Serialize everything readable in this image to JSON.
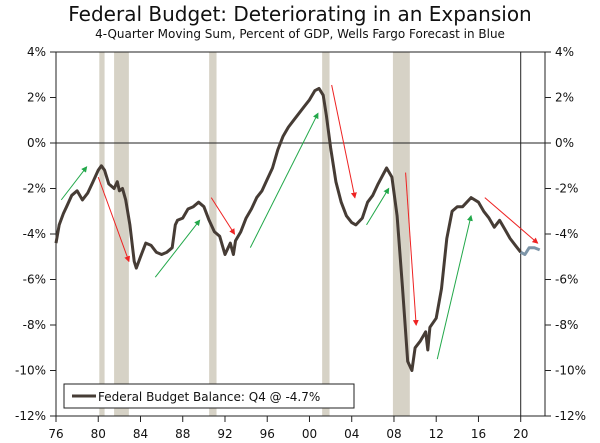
{
  "chart_data": {
    "type": "line",
    "title": "Federal Budget: Deteriorating in an Expansion",
    "subtitle": "4-Quarter Moving Sum, Percent of GDP, Wells Fargo Forecast in Blue",
    "xlabel": "",
    "ylabel": "",
    "xlim": [
      1976,
      2022.3
    ],
    "ylim": [
      -12,
      4
    ],
    "x_ticks": [
      1976,
      1980,
      1984,
      1988,
      1992,
      1996,
      2000,
      2004,
      2008,
      2012,
      2016,
      2020
    ],
    "x_tick_labels": [
      "76",
      "80",
      "84",
      "88",
      "92",
      "96",
      "00",
      "04",
      "08",
      "12",
      "16",
      "20"
    ],
    "y_ticks": [
      4,
      2,
      0,
      -2,
      -4,
      -6,
      -8,
      -10,
      -12
    ],
    "y_tick_labels": [
      "4%",
      "2%",
      "0%",
      "-2%",
      "-4%",
      "-6%",
      "-8%",
      "-10%",
      "-12%"
    ],
    "legend": {
      "label": "Federal Budget Balance: Q4 @ -4.7%",
      "placement": "bottom-left"
    },
    "forecast_start": 2020,
    "colors": {
      "actual": "#463c35",
      "forecast": "#7d95a8",
      "recession": "#d6d2c6",
      "up_arrow": "#22a84a",
      "down_arrow": "#ee2222"
    },
    "recessions": [
      [
        1980.1,
        1980.6
      ],
      [
        1981.5,
        1982.9
      ],
      [
        1990.5,
        1991.2
      ],
      [
        2001.2,
        2001.9
      ],
      [
        2007.9,
        2009.5
      ]
    ],
    "series": [
      {
        "name": "Federal Budget Balance",
        "x": [
          1976,
          1976.3,
          1976.7,
          1977,
          1977.5,
          1978,
          1978.5,
          1979,
          1979.5,
          1980,
          1980.3,
          1980.6,
          1981,
          1981.5,
          1981.8,
          1982,
          1982.3,
          1982.6,
          1983,
          1983.4,
          1983.6,
          1984,
          1984.5,
          1985,
          1985.5,
          1986,
          1986.5,
          1987,
          1987.3,
          1987.5,
          1988,
          1988.5,
          1989,
          1989.5,
          1990,
          1990.5,
          1991,
          1991.5,
          1992,
          1992.5,
          1992.8,
          1993,
          1993.5,
          1994,
          1994.5,
          1995,
          1995.5,
          1996,
          1996.5,
          1997,
          1997.5,
          1998,
          1998.5,
          1999,
          1999.5,
          2000,
          2000.5,
          2000.9,
          2001.3,
          2001.6,
          2002,
          2002.5,
          2003,
          2003.5,
          2004,
          2004.4,
          2005,
          2005.5,
          2006,
          2006.5,
          2007.3,
          2007.8,
          2008.3,
          2008.8,
          2009.3,
          2009.7,
          2010,
          2010.5,
          2011,
          2011.2,
          2011.4,
          2012,
          2012.5,
          2013,
          2013.5,
          2014,
          2014.5,
          2015.3,
          2016,
          2016.5,
          2017,
          2017.5,
          2018,
          2018.5,
          2019,
          2019.5,
          2020
        ],
        "values": [
          -4.4,
          -3.6,
          -3.1,
          -2.8,
          -2.3,
          -2.1,
          -2.5,
          -2.2,
          -1.7,
          -1.2,
          -1.0,
          -1.2,
          -1.8,
          -2.0,
          -1.7,
          -2.1,
          -2.0,
          -2.5,
          -3.6,
          -5.2,
          -5.5,
          -5.0,
          -4.4,
          -4.5,
          -4.8,
          -4.9,
          -4.8,
          -4.6,
          -3.6,
          -3.4,
          -3.3,
          -2.9,
          -2.8,
          -2.6,
          -2.8,
          -3.4,
          -3.9,
          -4.1,
          -4.9,
          -4.4,
          -4.9,
          -4.3,
          -3.9,
          -3.3,
          -2.9,
          -2.4,
          -2.1,
          -1.6,
          -1.1,
          -0.3,
          0.3,
          0.7,
          1.0,
          1.3,
          1.6,
          1.9,
          2.3,
          2.4,
          2.1,
          1.2,
          -0.2,
          -1.7,
          -2.6,
          -3.2,
          -3.5,
          -3.6,
          -3.3,
          -2.6,
          -2.3,
          -1.8,
          -1.1,
          -1.5,
          -3.2,
          -6.3,
          -9.6,
          -10.0,
          -9.0,
          -8.7,
          -8.3,
          -9.1,
          -8.1,
          -7.7,
          -6.4,
          -4.2,
          -3.0,
          -2.8,
          -2.8,
          -2.4,
          -2.6,
          -3.0,
          -3.3,
          -3.7,
          -3.4,
          -3.8,
          -4.2,
          -4.5,
          -4.8
        ]
      },
      {
        "name": "Wells Fargo Forecast",
        "x": [
          2020,
          2020.4,
          2020.8,
          2021.3,
          2021.8
        ],
        "values": [
          -4.8,
          -4.9,
          -4.6,
          -4.6,
          -4.7
        ]
      }
    ],
    "annotations": [
      {
        "type": "arrow",
        "direction": "up",
        "from": [
          1976.5,
          -2.5
        ],
        "to": [
          1978.9,
          -1.05
        ]
      },
      {
        "type": "arrow",
        "direction": "down",
        "from": [
          1980.0,
          -1.5
        ],
        "to": [
          1982.9,
          -5.2
        ]
      },
      {
        "type": "arrow",
        "direction": "up",
        "from": [
          1985.4,
          -5.9
        ],
        "to": [
          1989.6,
          -3.4
        ]
      },
      {
        "type": "arrow",
        "direction": "down",
        "from": [
          1990.7,
          -2.4
        ],
        "to": [
          1992.9,
          -4.0
        ]
      },
      {
        "type": "arrow",
        "direction": "up",
        "from": [
          1994.4,
          -4.6
        ],
        "to": [
          2000.8,
          1.3
        ]
      },
      {
        "type": "arrow",
        "direction": "down",
        "from": [
          2002.1,
          2.55
        ],
        "to": [
          2004.3,
          -2.4
        ]
      },
      {
        "type": "arrow",
        "direction": "up",
        "from": [
          2005.4,
          -3.6
        ],
        "to": [
          2007.5,
          -2.0
        ]
      },
      {
        "type": "arrow",
        "direction": "down",
        "from": [
          2009.1,
          -1.3
        ],
        "to": [
          2010.1,
          -8.0
        ]
      },
      {
        "type": "arrow",
        "direction": "up",
        "from": [
          2012.1,
          -9.5
        ],
        "to": [
          2015.3,
          -3.2
        ]
      },
      {
        "type": "arrow",
        "direction": "down",
        "from": [
          2016.6,
          -2.4
        ],
        "to": [
          2021.6,
          -4.4
        ]
      }
    ]
  }
}
